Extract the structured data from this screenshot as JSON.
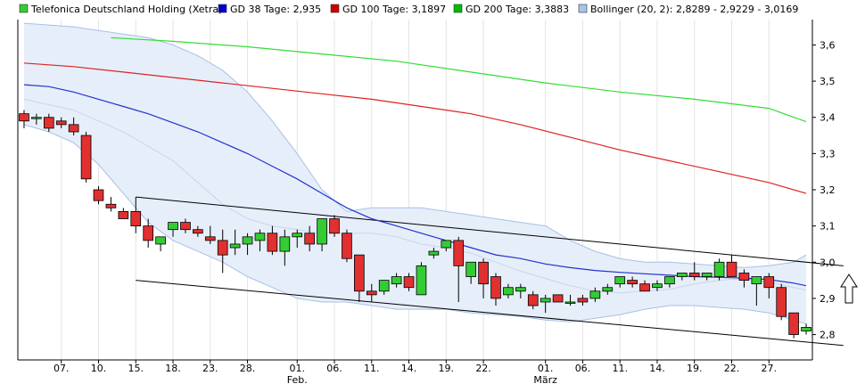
{
  "chart_data": {
    "type": "candlestick",
    "legend_position": "top",
    "legend": [
      {
        "label": "Telefonica Deutschland Holding (Xetra)",
        "color": "#33cc33"
      },
      {
        "label": "GD 38 Tage: 2,935",
        "color": "#0000cc"
      },
      {
        "label": "GD 100 Tage: 3,1897",
        "color": "#cc0000"
      },
      {
        "label": "GD 200 Tage: 3,3883",
        "color": "#00bb00"
      },
      {
        "label": "Bollinger (20, 2): 2,8289 - 2,9229 - 3,0169",
        "color": "#a8c4e8"
      }
    ],
    "colors": {
      "up": "#33cc33",
      "down": "#e03030",
      "gd38": "#2233cc",
      "gd100": "#dd2222",
      "gd200": "#33dd33",
      "band_fill": "#e6eefa",
      "band_line": "#a8c0e4",
      "trend": "#000000"
    },
    "y_axis": {
      "position": "right",
      "ylim": [
        2.73,
        3.67
      ],
      "ticks": [
        {
          "v": 3.6,
          "label": "3,6"
        },
        {
          "v": 3.5,
          "label": "3,5"
        },
        {
          "v": 3.4,
          "label": "3,4"
        },
        {
          "v": 3.3,
          "label": "3,3"
        },
        {
          "v": 3.2,
          "label": "3,2"
        },
        {
          "v": 3.1,
          "label": "3,1"
        },
        {
          "v": 3.0,
          "label": "3,0"
        },
        {
          "v": 2.9,
          "label": "2,9"
        },
        {
          "v": 2.8,
          "label": "2,8"
        }
      ]
    },
    "x_axis": {
      "count": 64,
      "ticks": [
        {
          "i": 3,
          "label": "07.",
          "sub": ""
        },
        {
          "i": 6,
          "label": "10.",
          "sub": ""
        },
        {
          "i": 9,
          "label": "15.",
          "sub": ""
        },
        {
          "i": 12,
          "label": "18.",
          "sub": ""
        },
        {
          "i": 15,
          "label": "23.",
          "sub": ""
        },
        {
          "i": 18,
          "label": "28.",
          "sub": ""
        },
        {
          "i": 22,
          "label": "01.",
          "sub": "Feb."
        },
        {
          "i": 25,
          "label": "06.",
          "sub": ""
        },
        {
          "i": 28,
          "label": "11.",
          "sub": ""
        },
        {
          "i": 31,
          "label": "14.",
          "sub": ""
        },
        {
          "i": 34,
          "label": "19.",
          "sub": ""
        },
        {
          "i": 37,
          "label": "22.",
          "sub": ""
        },
        {
          "i": 42,
          "label": "01.",
          "sub": "März"
        },
        {
          "i": 45,
          "label": "06.",
          "sub": ""
        },
        {
          "i": 48,
          "label": "11.",
          "sub": ""
        },
        {
          "i": 51,
          "label": "14.",
          "sub": ""
        },
        {
          "i": 54,
          "label": "19.",
          "sub": ""
        },
        {
          "i": 57,
          "label": "22.",
          "sub": ""
        },
        {
          "i": 60,
          "label": "27.",
          "sub": ""
        }
      ]
    },
    "candles": [
      {
        "o": 3.41,
        "h": 3.42,
        "l": 3.37,
        "c": 3.39
      },
      {
        "o": 3.4,
        "h": 3.41,
        "l": 3.38,
        "c": 3.4
      },
      {
        "o": 3.4,
        "h": 3.41,
        "l": 3.36,
        "c": 3.37
      },
      {
        "o": 3.39,
        "h": 3.4,
        "l": 3.37,
        "c": 3.38
      },
      {
        "o": 3.38,
        "h": 3.4,
        "l": 3.35,
        "c": 3.36
      },
      {
        "o": 3.35,
        "h": 3.36,
        "l": 3.22,
        "c": 3.23
      },
      {
        "o": 3.2,
        "h": 3.21,
        "l": 3.16,
        "c": 3.17
      },
      {
        "o": 3.16,
        "h": 3.18,
        "l": 3.14,
        "c": 3.15
      },
      {
        "o": 3.14,
        "h": 3.15,
        "l": 3.12,
        "c": 3.12
      },
      {
        "o": 3.14,
        "h": 3.18,
        "l": 3.08,
        "c": 3.1
      },
      {
        "o": 3.1,
        "h": 3.12,
        "l": 3.04,
        "c": 3.06
      },
      {
        "o": 3.05,
        "h": 3.07,
        "l": 3.03,
        "c": 3.07
      },
      {
        "o": 3.09,
        "h": 3.11,
        "l": 3.07,
        "c": 3.11
      },
      {
        "o": 3.11,
        "h": 3.12,
        "l": 3.08,
        "c": 3.09
      },
      {
        "o": 3.09,
        "h": 3.1,
        "l": 3.07,
        "c": 3.08
      },
      {
        "o": 3.07,
        "h": 3.1,
        "l": 3.05,
        "c": 3.06
      },
      {
        "o": 3.06,
        "h": 3.09,
        "l": 2.97,
        "c": 3.02
      },
      {
        "o": 3.04,
        "h": 3.09,
        "l": 3.02,
        "c": 3.05
      },
      {
        "o": 3.05,
        "h": 3.08,
        "l": 3.02,
        "c": 3.07
      },
      {
        "o": 3.06,
        "h": 3.09,
        "l": 3.03,
        "c": 3.08
      },
      {
        "o": 3.08,
        "h": 3.1,
        "l": 3.02,
        "c": 3.03
      },
      {
        "o": 3.03,
        "h": 3.09,
        "l": 2.99,
        "c": 3.07
      },
      {
        "o": 3.07,
        "h": 3.09,
        "l": 3.04,
        "c": 3.08
      },
      {
        "o": 3.08,
        "h": 3.1,
        "l": 3.03,
        "c": 3.05
      },
      {
        "o": 3.05,
        "h": 3.12,
        "l": 3.03,
        "c": 3.12
      },
      {
        "o": 3.12,
        "h": 3.13,
        "l": 3.07,
        "c": 3.08
      },
      {
        "o": 3.08,
        "h": 3.09,
        "l": 3.0,
        "c": 3.01
      },
      {
        "o": 3.02,
        "h": 3.02,
        "l": 2.89,
        "c": 2.92
      },
      {
        "o": 2.92,
        "h": 2.94,
        "l": 2.89,
        "c": 2.91
      },
      {
        "o": 2.92,
        "h": 2.95,
        "l": 2.91,
        "c": 2.95
      },
      {
        "o": 2.94,
        "h": 2.97,
        "l": 2.93,
        "c": 2.96
      },
      {
        "o": 2.96,
        "h": 2.97,
        "l": 2.92,
        "c": 2.93
      },
      {
        "o": 2.91,
        "h": 3.0,
        "l": 2.91,
        "c": 2.99
      },
      {
        "o": 3.02,
        "h": 3.04,
        "l": 3.01,
        "c": 3.03
      },
      {
        "o": 3.04,
        "h": 3.06,
        "l": 3.03,
        "c": 3.06
      },
      {
        "o": 3.06,
        "h": 3.07,
        "l": 2.89,
        "c": 2.99
      },
      {
        "o": 2.96,
        "h": 3.0,
        "l": 2.94,
        "c": 3.0
      },
      {
        "o": 3.0,
        "h": 3.01,
        "l": 2.9,
        "c": 2.94
      },
      {
        "o": 2.96,
        "h": 2.97,
        "l": 2.88,
        "c": 2.9
      },
      {
        "o": 2.91,
        "h": 2.94,
        "l": 2.9,
        "c": 2.93
      },
      {
        "o": 2.92,
        "h": 2.94,
        "l": 2.9,
        "c": 2.93
      },
      {
        "o": 2.91,
        "h": 2.92,
        "l": 2.87,
        "c": 2.88
      },
      {
        "o": 2.89,
        "h": 2.91,
        "l": 2.86,
        "c": 2.9
      },
      {
        "o": 2.91,
        "h": 2.91,
        "l": 2.89,
        "c": 2.89
      },
      {
        "o": 2.89,
        "h": 2.91,
        "l": 2.88,
        "c": 2.89
      },
      {
        "o": 2.9,
        "h": 2.91,
        "l": 2.88,
        "c": 2.89
      },
      {
        "o": 2.9,
        "h": 2.93,
        "l": 2.89,
        "c": 2.92
      },
      {
        "o": 2.92,
        "h": 2.94,
        "l": 2.91,
        "c": 2.93
      },
      {
        "o": 2.94,
        "h": 2.96,
        "l": 2.93,
        "c": 2.96
      },
      {
        "o": 2.95,
        "h": 2.96,
        "l": 2.93,
        "c": 2.94
      },
      {
        "o": 2.94,
        "h": 2.95,
        "l": 2.92,
        "c": 2.92
      },
      {
        "o": 2.93,
        "h": 2.95,
        "l": 2.92,
        "c": 2.94
      },
      {
        "o": 2.94,
        "h": 2.96,
        "l": 2.93,
        "c": 2.96
      },
      {
        "o": 2.96,
        "h": 2.97,
        "l": 2.95,
        "c": 2.97
      },
      {
        "o": 2.97,
        "h": 3.0,
        "l": 2.95,
        "c": 2.96
      },
      {
        "o": 2.96,
        "h": 2.97,
        "l": 2.95,
        "c": 2.97
      },
      {
        "o": 2.96,
        "h": 3.01,
        "l": 2.95,
        "c": 3.0
      },
      {
        "o": 3.0,
        "h": 3.02,
        "l": 2.96,
        "c": 2.96
      },
      {
        "o": 2.97,
        "h": 2.98,
        "l": 2.93,
        "c": 2.95
      },
      {
        "o": 2.94,
        "h": 2.96,
        "l": 2.88,
        "c": 2.96
      },
      {
        "o": 2.96,
        "h": 2.97,
        "l": 2.9,
        "c": 2.93
      },
      {
        "o": 2.93,
        "h": 2.94,
        "l": 2.84,
        "c": 2.85
      },
      {
        "o": 2.86,
        "h": 2.86,
        "l": 2.79,
        "c": 2.8
      },
      {
        "o": 2.81,
        "h": 2.83,
        "l": 2.8,
        "c": 2.82
      }
    ],
    "gd38": [
      [
        0,
        3.49
      ],
      [
        2,
        3.485
      ],
      [
        4,
        3.47
      ],
      [
        6,
        3.45
      ],
      [
        8,
        3.43
      ],
      [
        10,
        3.41
      ],
      [
        12,
        3.385
      ],
      [
        14,
        3.36
      ],
      [
        16,
        3.33
      ],
      [
        18,
        3.3
      ],
      [
        20,
        3.265
      ],
      [
        22,
        3.23
      ],
      [
        24,
        3.19
      ],
      [
        26,
        3.15
      ],
      [
        28,
        3.12
      ],
      [
        30,
        3.1
      ],
      [
        32,
        3.08
      ],
      [
        34,
        3.06
      ],
      [
        36,
        3.04
      ],
      [
        38,
        3.02
      ],
      [
        40,
        3.01
      ],
      [
        42,
        2.995
      ],
      [
        44,
        2.985
      ],
      [
        46,
        2.977
      ],
      [
        48,
        2.972
      ],
      [
        50,
        2.968
      ],
      [
        52,
        2.964
      ],
      [
        54,
        2.96
      ],
      [
        56,
        2.958
      ],
      [
        58,
        2.956
      ],
      [
        60,
        2.952
      ],
      [
        62,
        2.942
      ],
      [
        63,
        2.935
      ]
    ],
    "gd100": [
      [
        0,
        3.55
      ],
      [
        4,
        3.54
      ],
      [
        8,
        3.525
      ],
      [
        12,
        3.51
      ],
      [
        16,
        3.495
      ],
      [
        20,
        3.48
      ],
      [
        24,
        3.465
      ],
      [
        28,
        3.45
      ],
      [
        32,
        3.43
      ],
      [
        36,
        3.41
      ],
      [
        40,
        3.38
      ],
      [
        44,
        3.345
      ],
      [
        48,
        3.31
      ],
      [
        52,
        3.28
      ],
      [
        56,
        3.25
      ],
      [
        60,
        3.22
      ],
      [
        63,
        3.19
      ]
    ],
    "gd200": [
      [
        7,
        3.62
      ],
      [
        12,
        3.61
      ],
      [
        18,
        3.595
      ],
      [
        24,
        3.575
      ],
      [
        30,
        3.555
      ],
      [
        36,
        3.525
      ],
      [
        42,
        3.495
      ],
      [
        48,
        3.47
      ],
      [
        54,
        3.45
      ],
      [
        60,
        3.425
      ],
      [
        63,
        3.388
      ]
    ],
    "bb_upper": [
      [
        0,
        3.66
      ],
      [
        2,
        3.655
      ],
      [
        4,
        3.65
      ],
      [
        6,
        3.64
      ],
      [
        8,
        3.63
      ],
      [
        10,
        3.62
      ],
      [
        12,
        3.6
      ],
      [
        14,
        3.57
      ],
      [
        16,
        3.53
      ],
      [
        18,
        3.47
      ],
      [
        20,
        3.39
      ],
      [
        22,
        3.3
      ],
      [
        24,
        3.2
      ],
      [
        26,
        3.14
      ],
      [
        28,
        3.15
      ],
      [
        30,
        3.15
      ],
      [
        32,
        3.15
      ],
      [
        34,
        3.14
      ],
      [
        36,
        3.13
      ],
      [
        38,
        3.12
      ],
      [
        40,
        3.11
      ],
      [
        42,
        3.1
      ],
      [
        44,
        3.06
      ],
      [
        46,
        3.03
      ],
      [
        48,
        3.01
      ],
      [
        50,
        3.0
      ],
      [
        52,
        3.0
      ],
      [
        54,
        2.995
      ],
      [
        56,
        2.99
      ],
      [
        58,
        2.985
      ],
      [
        60,
        2.99
      ],
      [
        62,
        3.0
      ],
      [
        63,
        3.02
      ]
    ],
    "bb_mid": [
      [
        0,
        3.45
      ],
      [
        2,
        3.435
      ],
      [
        4,
        3.42
      ],
      [
        6,
        3.39
      ],
      [
        8,
        3.36
      ],
      [
        10,
        3.32
      ],
      [
        12,
        3.28
      ],
      [
        14,
        3.22
      ],
      [
        16,
        3.16
      ],
      [
        18,
        3.12
      ],
      [
        20,
        3.1
      ],
      [
        22,
        3.09
      ],
      [
        24,
        3.08
      ],
      [
        26,
        3.08
      ],
      [
        28,
        3.08
      ],
      [
        30,
        3.07
      ],
      [
        32,
        3.05
      ],
      [
        34,
        3.04
      ],
      [
        36,
        3.025
      ],
      [
        38,
        3.0
      ],
      [
        40,
        2.975
      ],
      [
        42,
        2.955
      ],
      [
        44,
        2.935
      ],
      [
        46,
        2.92
      ],
      [
        48,
        2.915
      ],
      [
        50,
        2.92
      ],
      [
        52,
        2.925
      ],
      [
        54,
        2.94
      ],
      [
        56,
        2.95
      ],
      [
        58,
        2.955
      ],
      [
        60,
        2.945
      ],
      [
        62,
        2.93
      ],
      [
        63,
        2.923
      ]
    ],
    "bb_lower": [
      [
        0,
        3.38
      ],
      [
        2,
        3.36
      ],
      [
        4,
        3.33
      ],
      [
        6,
        3.27
      ],
      [
        8,
        3.19
      ],
      [
        10,
        3.11
      ],
      [
        12,
        3.06
      ],
      [
        14,
        3.03
      ],
      [
        16,
        3.0
      ],
      [
        18,
        2.96
      ],
      [
        20,
        2.93
      ],
      [
        22,
        2.9
      ],
      [
        24,
        2.89
      ],
      [
        26,
        2.89
      ],
      [
        28,
        2.88
      ],
      [
        30,
        2.87
      ],
      [
        32,
        2.87
      ],
      [
        34,
        2.87
      ],
      [
        36,
        2.86
      ],
      [
        38,
        2.855
      ],
      [
        40,
        2.85
      ],
      [
        42,
        2.84
      ],
      [
        44,
        2.835
      ],
      [
        46,
        2.845
      ],
      [
        48,
        2.855
      ],
      [
        50,
        2.87
      ],
      [
        52,
        2.88
      ],
      [
        54,
        2.88
      ],
      [
        56,
        2.875
      ],
      [
        58,
        2.87
      ],
      [
        60,
        2.86
      ],
      [
        62,
        2.84
      ],
      [
        63,
        2.829
      ]
    ],
    "trend_upper": [
      [
        9,
        3.18
      ],
      [
        66,
        2.99
      ]
    ],
    "trend_lower": [
      [
        9,
        2.95
      ],
      [
        66,
        2.77
      ]
    ]
  }
}
